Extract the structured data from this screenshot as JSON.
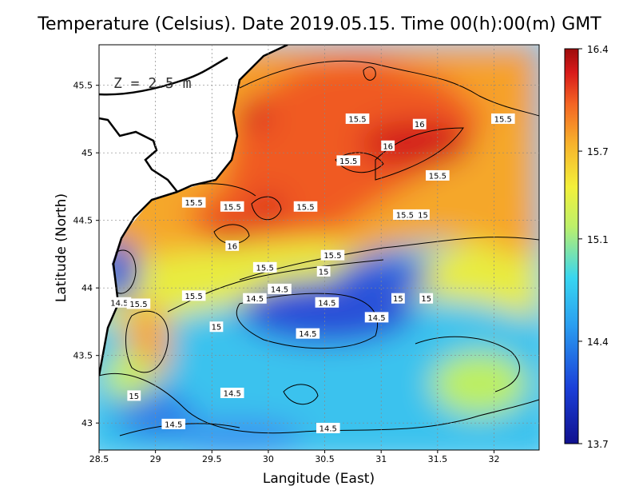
{
  "title": "Temperature (Celsius). Date 2019.05.15. Time 00(h):00(m) GMT",
  "depth_label": "Z = 2.5 m",
  "xlabel": "Langitude (East)",
  "ylabel": "Latitude (North)",
  "x_ticks": [
    "28.5",
    "29",
    "29.5",
    "30",
    "30.5",
    "31",
    "31.5",
    "32"
  ],
  "y_ticks": [
    "43",
    "43.5",
    "44",
    "44.5",
    "45",
    "45.5"
  ],
  "colorbar_ticks": [
    "16.4",
    "15.7",
    "15.1",
    "14.4",
    "13.7"
  ],
  "contour_labels": [
    {
      "text": "15.5",
      "lon": 30.79,
      "lat": 45.25
    },
    {
      "text": "16",
      "lon": 31.34,
      "lat": 45.21
    },
    {
      "text": "15.5",
      "lon": 32.08,
      "lat": 45.25
    },
    {
      "text": "16",
      "lon": 31.06,
      "lat": 45.05
    },
    {
      "text": "15.5",
      "lon": 30.71,
      "lat": 44.94
    },
    {
      "text": "15.5",
      "lon": 31.5,
      "lat": 44.83
    },
    {
      "text": "15.5",
      "lon": 29.34,
      "lat": 44.63
    },
    {
      "text": "15.5",
      "lon": 29.68,
      "lat": 44.6
    },
    {
      "text": "15.5",
      "lon": 30.33,
      "lat": 44.6
    },
    {
      "text": "15.5",
      "lon": 31.21,
      "lat": 44.54
    },
    {
      "text": "15",
      "lon": 31.37,
      "lat": 44.54
    },
    {
      "text": "16",
      "lon": 29.68,
      "lat": 44.31
    },
    {
      "text": "15.5",
      "lon": 30.57,
      "lat": 44.24
    },
    {
      "text": "15.5",
      "lon": 29.97,
      "lat": 44.15
    },
    {
      "text": "15",
      "lon": 30.49,
      "lat": 44.12
    },
    {
      "text": "14.5",
      "lon": 30.1,
      "lat": 43.99
    },
    {
      "text": "15.5",
      "lon": 29.34,
      "lat": 43.94
    },
    {
      "text": "14.5",
      "lon": 29.88,
      "lat": 43.92
    },
    {
      "text": "14.5",
      "lon": 28.68,
      "lat": 43.89
    },
    {
      "text": "15.5",
      "lon": 28.85,
      "lat": 43.88
    },
    {
      "text": "15",
      "lon": 31.15,
      "lat": 43.92
    },
    {
      "text": "15",
      "lon": 31.4,
      "lat": 43.92
    },
    {
      "text": "14.5",
      "lon": 30.52,
      "lat": 43.89
    },
    {
      "text": "14.5",
      "lon": 30.96,
      "lat": 43.78
    },
    {
      "text": "15",
      "lon": 29.54,
      "lat": 43.71
    },
    {
      "text": "14.5",
      "lon": 30.35,
      "lat": 43.66
    },
    {
      "text": "15",
      "lon": 28.81,
      "lat": 43.2
    },
    {
      "text": "14.5",
      "lon": 29.68,
      "lat": 43.22
    },
    {
      "text": "14.5",
      "lon": 29.16,
      "lat": 42.99
    },
    {
      "text": "14.5",
      "lon": 30.53,
      "lat": 42.96
    }
  ],
  "colors": {
    "ramp": [
      "#10108e",
      "#1a3fd8",
      "#2a9ef0",
      "#38d6f0",
      "#bdf06a",
      "#f3f03a",
      "#f7b22c",
      "#f46523",
      "#d81a1a",
      "#9e0b0b"
    ],
    "land": "#ffffff",
    "coast": "#000000",
    "contour": "#000000"
  }
}
